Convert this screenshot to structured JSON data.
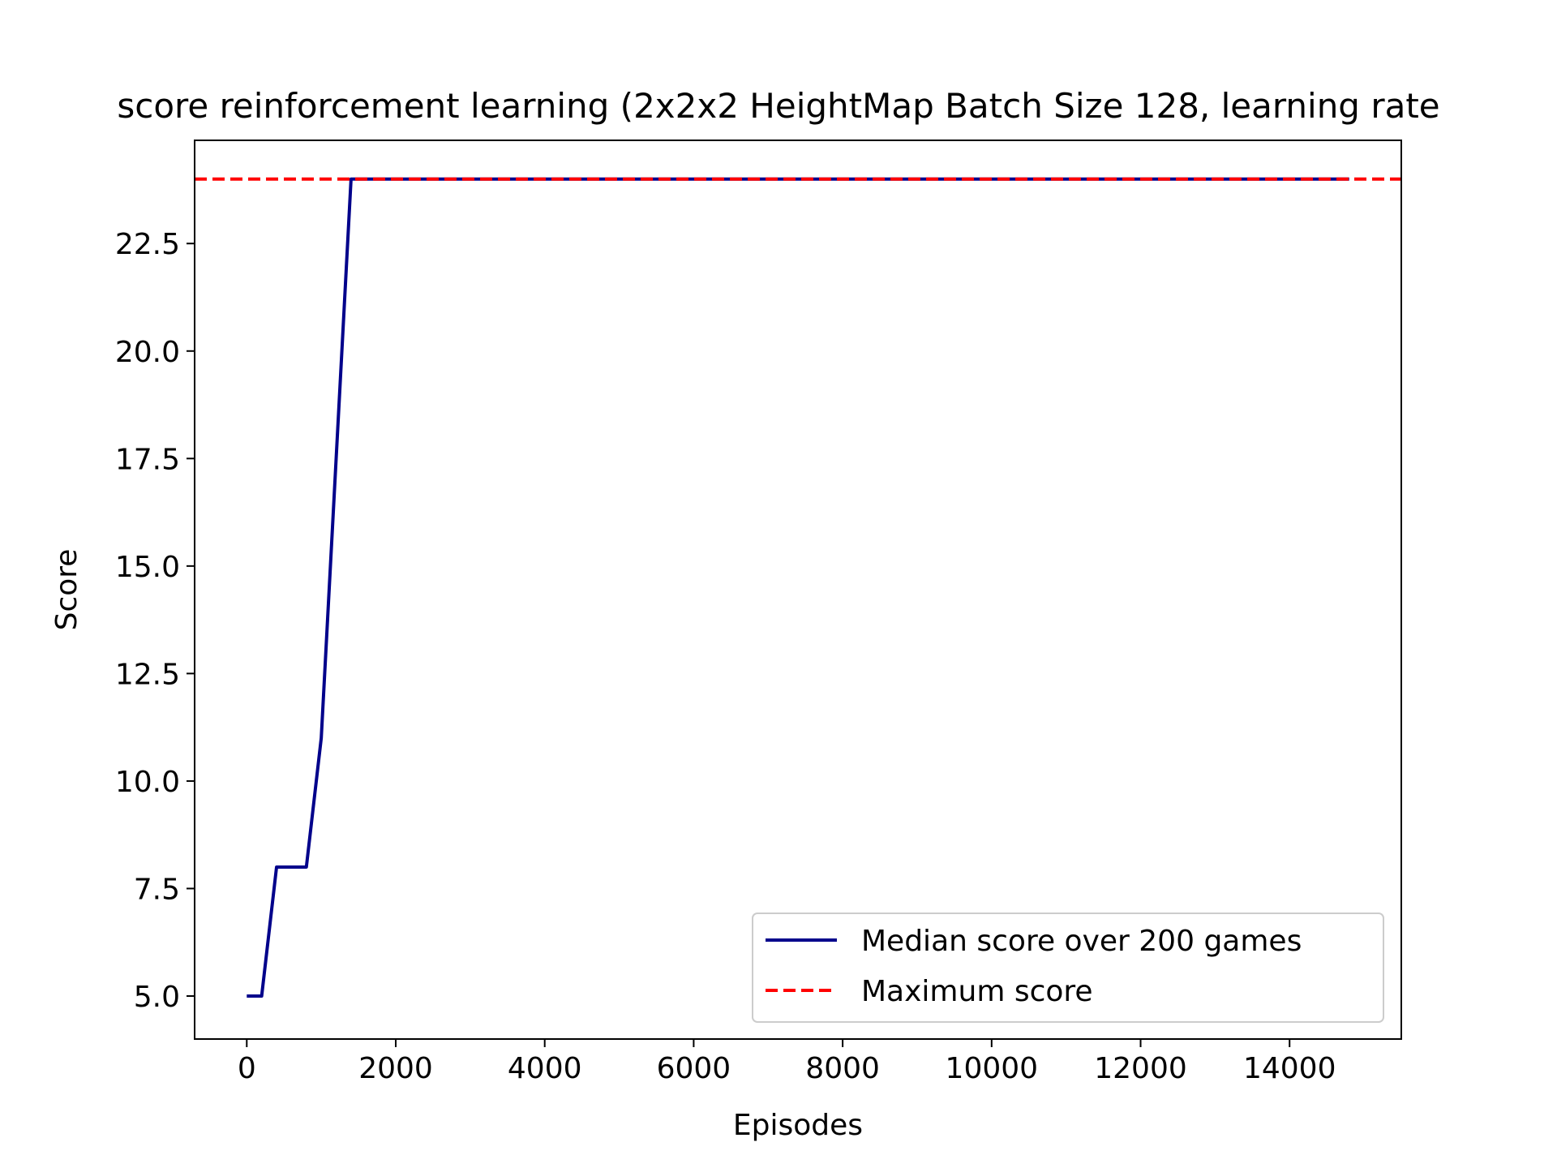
{
  "chart_data": {
    "type": "line",
    "title": "score reinforcement learning (2x2x2 HeightMap Batch Size 128, learning rate",
    "xlabel": "Episodes",
    "ylabel": "Score",
    "xlim": [
      -700,
      15500
    ],
    "ylim": [
      4.0,
      24.9
    ],
    "x_ticks": [
      0,
      2000,
      4000,
      6000,
      8000,
      10000,
      12000,
      14000
    ],
    "y_ticks": [
      5.0,
      7.5,
      10.0,
      12.5,
      15.0,
      17.5,
      20.0,
      22.5
    ],
    "grid": false,
    "legend_position": "lower-right",
    "series": [
      {
        "name": "Median score over 200 games",
        "style": "solid",
        "color": "#00008b",
        "x": [
          0,
          200,
          400,
          600,
          800,
          1000,
          1200,
          1400,
          2000,
          4000,
          6000,
          8000,
          10000,
          12000,
          14000,
          14800
        ],
        "y": [
          5,
          5,
          8,
          8,
          8,
          11,
          17.5,
          24,
          24,
          24,
          24,
          24,
          24,
          24,
          24,
          24
        ]
      },
      {
        "name": "Maximum score",
        "style": "dashed",
        "color": "#ff0000",
        "x": [
          -700,
          15500
        ],
        "y": [
          24,
          24
        ]
      }
    ]
  }
}
